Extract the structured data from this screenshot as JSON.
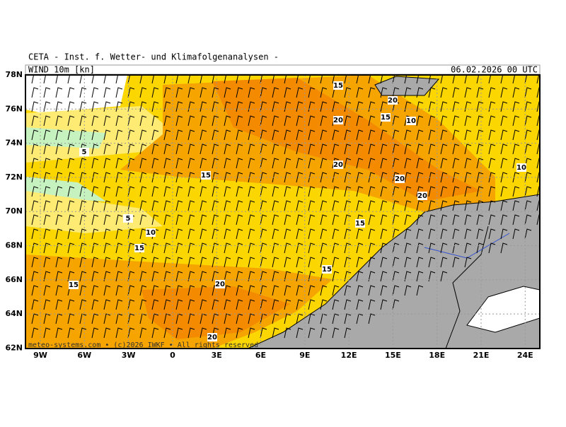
{
  "header": {
    "title": "CETA - Inst. f. Wetter- und Klimafolgenanalysen -",
    "field": "WIND 10m [kn]",
    "valid_time": "06.02.2026 00 UTC"
  },
  "map": {
    "lat_labels": [
      "78N",
      "76N",
      "74N",
      "72N",
      "70N",
      "68N",
      "66N",
      "64N",
      "62N"
    ],
    "lon_labels": [
      "9W",
      "6W",
      "3W",
      "0",
      "3E",
      "6E",
      "9E",
      "12E",
      "15E",
      "18E",
      "21E",
      "24E"
    ],
    "contour_labels": [
      15,
      20,
      15,
      20,
      10,
      5,
      20,
      15,
      20,
      10,
      20,
      5,
      15,
      10,
      15,
      15,
      15,
      20,
      20
    ],
    "footer": "meteo-systems.com • (c)2026 IWKF • All rights reserved"
  }
}
